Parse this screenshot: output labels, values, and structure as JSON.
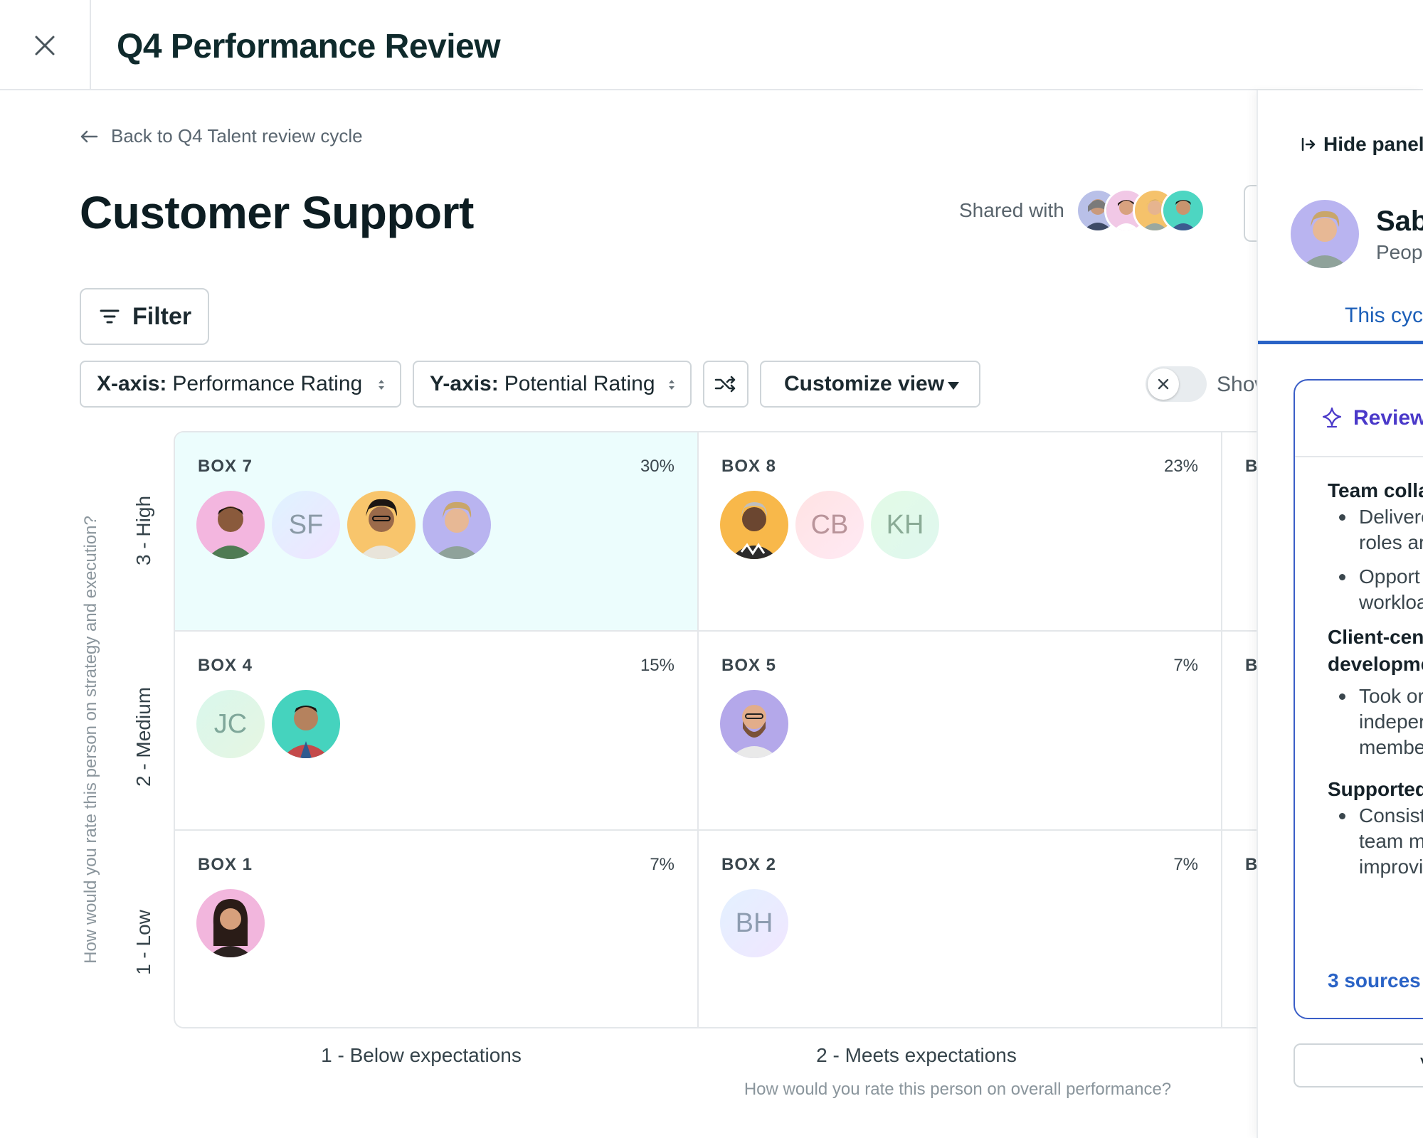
{
  "header": {
    "title": "Q4 Performance Review"
  },
  "main": {
    "back_link": "Back to Q4 Talent review cycle",
    "page_title": "Customer Support",
    "shared_label": "Shared with",
    "filter_label": "Filter",
    "x_axis_select": {
      "prefix": "X-axis:",
      "value": "Performance Rating"
    },
    "y_axis_select": {
      "prefix": "Y-axis:",
      "value": "Potential Rating"
    },
    "customize_label": "Customize view",
    "toggle_label": "Show",
    "y_question": "How would you rate this person on strategy and execution?",
    "x_question": "How would you rate this person on overall performance?",
    "y_labels": [
      "3 - High",
      "2 - Medium",
      "1 - Low"
    ],
    "x_labels": [
      "1 - Below expectations",
      "2 - Meets expectations"
    ],
    "boxes": {
      "box7": {
        "title": "BOX 7",
        "pct": "30%"
      },
      "box8": {
        "title": "BOX 8",
        "pct": "23%"
      },
      "box9": {
        "title": "BO"
      },
      "box4": {
        "title": "BOX 4",
        "pct": "15%"
      },
      "box5": {
        "title": "BOX 5",
        "pct": "7%"
      },
      "box6": {
        "title": "BO"
      },
      "box1": {
        "title": "BOX 1",
        "pct": "7%"
      },
      "box2": {
        "title": "BOX 2",
        "pct": "7%"
      },
      "box3": {
        "title": "BO"
      }
    },
    "initials": {
      "sf": "SF",
      "cb": "CB",
      "kh": "KH",
      "jc": "JC",
      "bh": "BH"
    }
  },
  "panel": {
    "hide_label": "Hide panel",
    "name": "Sab",
    "role": "Peopl",
    "tab": "This cycl",
    "card_title": "Review",
    "sections": [
      {
        "title": "Team colla",
        "bullets": [
          [
            "Delivere",
            "roles ar"
          ],
          [
            "Opport",
            "workloa"
          ]
        ]
      },
      {
        "title": "Client-cent",
        "title2": "developme",
        "bullets": [
          [
            "Took or",
            "indeper",
            "membe"
          ]
        ]
      },
      {
        "title": "Supported",
        "bullets": [
          [
            "Consist",
            "team m",
            "improvi"
          ]
        ]
      }
    ],
    "sources": "3 sources",
    "bottom_button": "V"
  },
  "colors": {
    "selected_cell": "#ecfdfd",
    "accent_blue": "#2a63c6",
    "review_purple": "#4a39c9"
  }
}
